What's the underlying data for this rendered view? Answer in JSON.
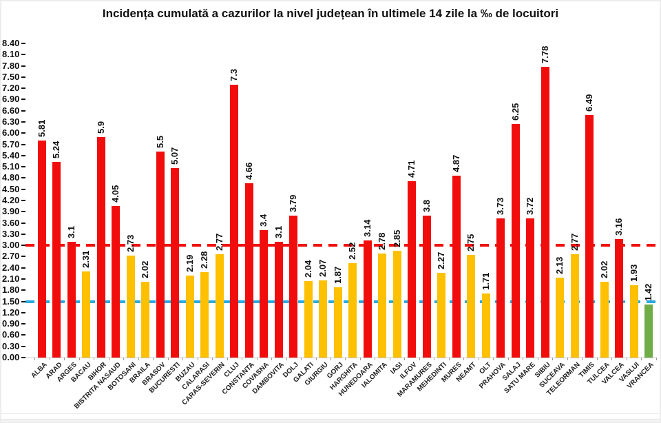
{
  "chart_data": {
    "type": "bar",
    "title": "Incidența cumulată a cazurilor la nivel județean în ultimele 14 zile la ‰ de locuitori",
    "xlabel": "",
    "ylabel": "",
    "ylim": [
      0,
      8.4
    ],
    "ytick_step": 0.3,
    "ytick_label_format": "two_decimals",
    "grid": false,
    "legend_position": "none",
    "categories": [
      "ALBA",
      "ARAD",
      "ARGES",
      "BACAU",
      "BIHOR",
      "BISTRITA NASAUD",
      "BOTOSANI",
      "BRAILA",
      "BRASOV",
      "BUCURESTI",
      "BUZAU",
      "CALARASI",
      "CARAS-SEVERIN",
      "CLUJ",
      "CONSTANTA",
      "COVASNA",
      "DAMBOVITA",
      "DOLJ",
      "GALATI",
      "GIURGIU",
      "GORJ",
      "HARGHITA",
      "HUNEDOARA",
      "IALOMITA",
      "IASI",
      "ILFOV",
      "MARAMURES",
      "MEHEDINTI",
      "MURES",
      "NEAMT",
      "OLT",
      "PRAHOVA",
      "SALAJ",
      "SATU MARE",
      "SIBIU",
      "SUCEAVA",
      "TELEORMAN",
      "TIMIS",
      "TULCEA",
      "VALCEA",
      "VASLUI",
      "VRANCEA"
    ],
    "values": [
      5.81,
      5.24,
      3.1,
      2.31,
      5.9,
      4.05,
      2.73,
      2.02,
      5.5,
      5.07,
      2.19,
      2.28,
      2.77,
      7.3,
      4.66,
      3.4,
      3.1,
      3.79,
      2.04,
      2.07,
      1.87,
      2.52,
      3.14,
      2.78,
      2.85,
      4.71,
      3.8,
      2.27,
      4.87,
      2.75,
      1.71,
      3.73,
      6.25,
      3.72,
      7.78,
      2.13,
      2.77,
      6.49,
      2.02,
      3.16,
      1.93,
      1.42
    ],
    "value_labels": [
      "5.81",
      "5.24",
      "3.1",
      "2.31",
      "5.9",
      "4.05",
      "2.73",
      "2.02",
      "5.5",
      "5.07",
      "2.19",
      "2.28",
      "2.77",
      "7.3",
      "4.66",
      "3.4",
      "3.1",
      "3.79",
      "2.04",
      "2.07",
      "1.87",
      "2.52",
      "3.14",
      "2.78",
      "2.85",
      "4.71",
      "3.8",
      "2.27",
      "4.87",
      "2.75",
      "1.71",
      "3.73",
      "6.25",
      "3.72",
      "7.78",
      "2.13",
      "2.77",
      "6.49",
      "2.02",
      "3.16",
      "1.93",
      "1.42"
    ],
    "bar_color_keys": [
      "red",
      "red",
      "red",
      "yellow",
      "red",
      "red",
      "yellow",
      "yellow",
      "red",
      "red",
      "yellow",
      "yellow",
      "yellow",
      "red",
      "red",
      "red",
      "red",
      "red",
      "yellow",
      "yellow",
      "yellow",
      "yellow",
      "red",
      "yellow",
      "yellow",
      "red",
      "red",
      "yellow",
      "red",
      "yellow",
      "yellow",
      "red",
      "red",
      "red",
      "red",
      "yellow",
      "yellow",
      "red",
      "yellow",
      "red",
      "yellow",
      "green"
    ],
    "palette": {
      "red": "#F20D0D",
      "yellow": "#FFC000",
      "green": "#70AD47"
    },
    "thresholds": {
      "red_min": 3.0,
      "green_max": 1.5
    },
    "reference_lines": [
      {
        "name": "threshold-3",
        "value": 3.0,
        "color": "#F20D0D",
        "style": "dashed"
      },
      {
        "name": "threshold-1.5",
        "value": 1.5,
        "color": "#29ABE2",
        "style": "dashed"
      }
    ]
  }
}
